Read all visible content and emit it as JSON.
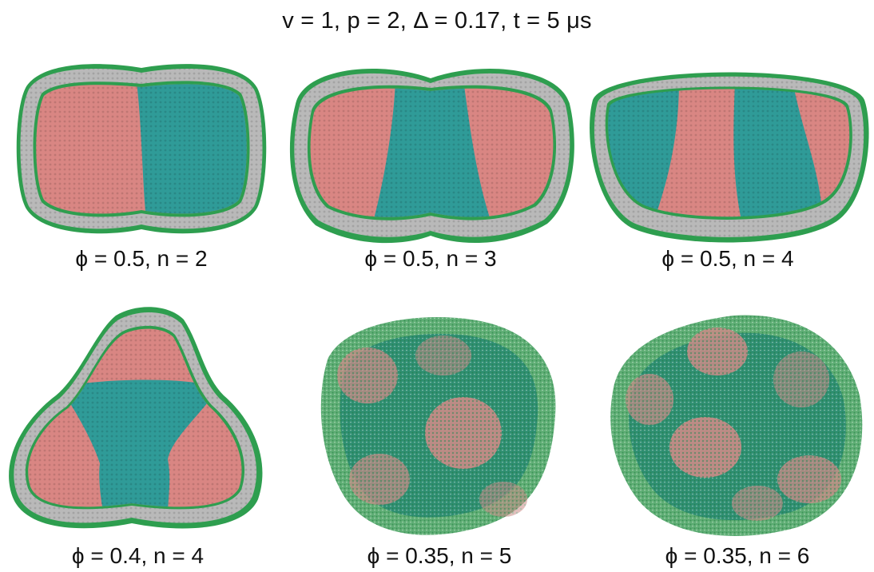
{
  "figure": {
    "title": "v = 1, p = 2, Δ = 0.17, t = 5 μs",
    "panels": [
      {
        "caption": "ϕ = 0.5, n = 2"
      },
      {
        "caption": "ϕ = 0.5, n = 3"
      },
      {
        "caption": "ϕ = 0.5, n = 4"
      },
      {
        "caption": "ϕ = 0.4, n = 4"
      },
      {
        "caption": "ϕ = 0.35, n = 5"
      },
      {
        "caption": "ϕ = 0.35, n = 6"
      }
    ]
  },
  "colors": {
    "membrane_gray": "#b9b9b9",
    "headgroup_green": "#2e9e4f",
    "domain_pink": "#d98683",
    "domain_teal": "#2f9b98",
    "background": "#ffffff"
  }
}
